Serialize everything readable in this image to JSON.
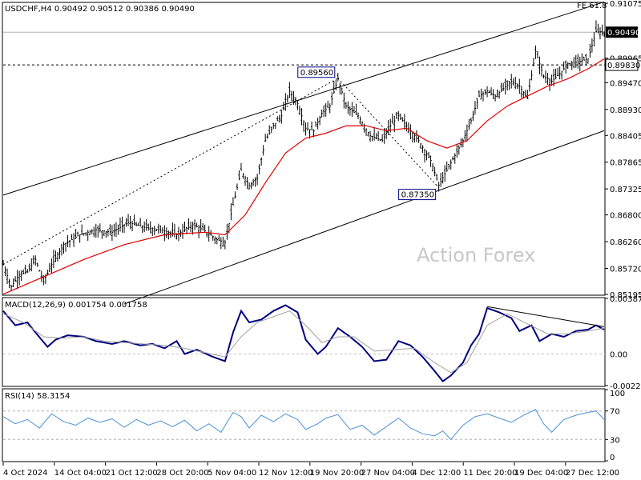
{
  "chart_data": [
    {
      "type": "candlestick",
      "title": "USDCHF,H4  0.90492 0.90512 0.90386 0.90490",
      "watermark": "Action Forex",
      "ylim": [
        0.85195,
        0.91075
      ],
      "y_ticks": [
        "0.91075",
        "0.90490",
        "0.89965",
        "0.89830",
        "0.89470",
        "0.88930",
        "0.88405",
        "0.87865",
        "0.87325",
        "0.86800",
        "0.86260",
        "0.85720",
        "0.85195"
      ],
      "price_tag": {
        "value": 0.9049,
        "label": "0.90490",
        "color": "#000000"
      },
      "hline": {
        "value": 0.8983,
        "label": "0.89830"
      },
      "fe_label": "FE 61.8",
      "x_labels": [
        "4 Oct 2024",
        "14 Oct 04:00",
        "21 Oct 12:00",
        "28 Oct 20:00",
        "5 Nov 04:00",
        "12 Nov 12:00",
        "19 Nov 20:00",
        "27 Nov 04:00",
        "4 Dec 12:00",
        "11 Dec 20:00",
        "19 Dec 04:00",
        "27 Dec 12:00"
      ],
      "annotations": [
        {
          "text": "0.89560",
          "value": 0.8956
        },
        {
          "text": "0.87350",
          "value": 0.8735
        }
      ],
      "price_path": [
        [
          0,
          0.858
        ],
        [
          4,
          0.8535
        ],
        [
          8,
          0.856
        ],
        [
          12,
          0.8565
        ],
        [
          16,
          0.859
        ],
        [
          20,
          0.8545
        ],
        [
          24,
          0.858
        ],
        [
          30,
          0.862
        ],
        [
          38,
          0.864
        ],
        [
          46,
          0.865
        ],
        [
          54,
          0.8645
        ],
        [
          62,
          0.8665
        ],
        [
          70,
          0.8655
        ],
        [
          78,
          0.865
        ],
        [
          86,
          0.864
        ],
        [
          94,
          0.866
        ],
        [
          100,
          0.8648
        ],
        [
          106,
          0.863
        ],
        [
          110,
          0.8625
        ],
        [
          114,
          0.87
        ],
        [
          118,
          0.877
        ],
        [
          122,
          0.874
        ],
        [
          126,
          0.8755
        ],
        [
          130,
          0.883
        ],
        [
          134,
          0.886
        ],
        [
          138,
          0.888
        ],
        [
          142,
          0.893
        ],
        [
          146,
          0.8905
        ],
        [
          150,
          0.8855
        ],
        [
          154,
          0.885
        ],
        [
          158,
          0.8885
        ],
        [
          162,
          0.89
        ],
        [
          166,
          0.8956
        ],
        [
          170,
          0.89
        ],
        [
          176,
          0.888
        ],
        [
          182,
          0.884
        ],
        [
          188,
          0.883
        ],
        [
          192,
          0.886
        ],
        [
          196,
          0.888
        ],
        [
          200,
          0.886
        ],
        [
          206,
          0.883
        ],
        [
          212,
          0.879
        ],
        [
          216,
          0.874
        ],
        [
          220,
          0.877
        ],
        [
          224,
          0.88
        ],
        [
          228,
          0.883
        ],
        [
          232,
          0.887
        ],
        [
          236,
          0.892
        ],
        [
          240,
          0.893
        ],
        [
          244,
          0.892
        ],
        [
          248,
          0.8935
        ],
        [
          252,
          0.895
        ],
        [
          256,
          0.894
        ],
        [
          260,
          0.8915
        ],
        [
          264,
          0.901
        ],
        [
          268,
          0.896
        ],
        [
          272,
          0.895
        ],
        [
          276,
          0.8965
        ],
        [
          280,
          0.8985
        ],
        [
          286,
          0.899
        ],
        [
          290,
          0.8995
        ],
        [
          294,
          0.905
        ],
        [
          298,
          0.9049
        ]
      ],
      "ma_path": [
        [
          0,
          0.852
        ],
        [
          20,
          0.8555
        ],
        [
          40,
          0.859
        ],
        [
          60,
          0.862
        ],
        [
          80,
          0.864
        ],
        [
          100,
          0.8645
        ],
        [
          110,
          0.864
        ],
        [
          120,
          0.868
        ],
        [
          130,
          0.8745
        ],
        [
          140,
          0.8805
        ],
        [
          150,
          0.8835
        ],
        [
          160,
          0.8845
        ],
        [
          170,
          0.886
        ],
        [
          180,
          0.886
        ],
        [
          190,
          0.885
        ],
        [
          200,
          0.8855
        ],
        [
          210,
          0.883
        ],
        [
          220,
          0.8815
        ],
        [
          230,
          0.883
        ],
        [
          240,
          0.887
        ],
        [
          250,
          0.89
        ],
        [
          260,
          0.892
        ],
        [
          270,
          0.894
        ],
        [
          280,
          0.8955
        ],
        [
          290,
          0.8975
        ],
        [
          298,
          0.8995
        ]
      ],
      "channel_upper": [
        [
          0,
          0.872
        ],
        [
          298,
          0.911
        ]
      ],
      "channel_lower": [
        [
          60,
          0.85
        ],
        [
          298,
          0.885
        ]
      ],
      "dashed_leg1": [
        [
          0,
          0.858
        ],
        [
          166,
          0.8956
        ]
      ],
      "dashed_leg2": [
        [
          166,
          0.8956
        ],
        [
          216,
          0.8735
        ]
      ],
      "colors": {
        "up": "#000000",
        "ma": "#e00000",
        "grid": "#c0c0c0"
      }
    },
    {
      "type": "line",
      "title": "MACD(12,26,9) 0.001754 0.001758",
      "ylim": [
        -0.002201,
        0.003873
      ],
      "y_ticks": [
        "0.003873",
        "0.00",
        "-0.002201"
      ],
      "zero_label": "0.00",
      "series": [
        {
          "name": "MACD",
          "color": "#000080",
          "values": [
            [
              0,
              0.003
            ],
            [
              6,
              0.002
            ],
            [
              12,
              0.0022
            ],
            [
              16,
              0.0015
            ],
            [
              22,
              0.0005
            ],
            [
              26,
              0.001
            ],
            [
              32,
              0.0013
            ],
            [
              40,
              0.0012
            ],
            [
              46,
              0.0009
            ],
            [
              54,
              0.0007
            ],
            [
              60,
              0.0009
            ],
            [
              68,
              0.0006
            ],
            [
              74,
              0.0007
            ],
            [
              80,
              0.0004
            ],
            [
              86,
              0.0009
            ],
            [
              90,
              0.0
            ],
            [
              96,
              0.0003
            ],
            [
              104,
              -0.0002
            ],
            [
              110,
              -0.0005
            ],
            [
              114,
              0.0015
            ],
            [
              118,
              0.003
            ],
            [
              122,
              0.0022
            ],
            [
              128,
              0.0024
            ],
            [
              134,
              0.003
            ],
            [
              140,
              0.0034
            ],
            [
              146,
              0.0029
            ],
            [
              150,
              0.001
            ],
            [
              156,
              0.0
            ],
            [
              160,
              0.0005
            ],
            [
              166,
              0.0018
            ],
            [
              172,
              0.0012
            ],
            [
              178,
              0.0005
            ],
            [
              184,
              -0.0005
            ],
            [
              190,
              -0.0004
            ],
            [
              196,
              0.0009
            ],
            [
              202,
              0.0006
            ],
            [
              208,
              -0.0002
            ],
            [
              214,
              -0.0012
            ],
            [
              218,
              -0.0019
            ],
            [
              222,
              -0.0015
            ],
            [
              228,
              -0.0006
            ],
            [
              232,
              0.0006
            ],
            [
              236,
              0.0014
            ],
            [
              240,
              0.0032
            ],
            [
              246,
              0.0029
            ],
            [
              252,
              0.0025
            ],
            [
              256,
              0.0016
            ],
            [
              262,
              0.002
            ],
            [
              266,
              0.0009
            ],
            [
              272,
              0.0014
            ],
            [
              278,
              0.0012
            ],
            [
              284,
              0.0016
            ],
            [
              290,
              0.0017
            ],
            [
              294,
              0.002
            ],
            [
              298,
              0.0017
            ]
          ]
        },
        {
          "name": "Signal",
          "color": "#a0a0a0",
          "values": [
            [
              0,
              0.0028
            ],
            [
              10,
              0.0022
            ],
            [
              20,
              0.0012
            ],
            [
              30,
              0.0011
            ],
            [
              40,
              0.0012
            ],
            [
              50,
              0.0009
            ],
            [
              60,
              0.0008
            ],
            [
              70,
              0.0007
            ],
            [
              80,
              0.0006
            ],
            [
              90,
              0.0004
            ],
            [
              100,
              0.0001
            ],
            [
              110,
              -0.0002
            ],
            [
              118,
              0.0012
            ],
            [
              126,
              0.0022
            ],
            [
              134,
              0.0026
            ],
            [
              142,
              0.003
            ],
            [
              150,
              0.002
            ],
            [
              158,
              0.0008
            ],
            [
              166,
              0.0012
            ],
            [
              174,
              0.0012
            ],
            [
              184,
              0.0002
            ],
            [
              194,
              0.0003
            ],
            [
              204,
              0.0004
            ],
            [
              214,
              -0.0006
            ],
            [
              222,
              -0.0013
            ],
            [
              230,
              -0.0006
            ],
            [
              240,
              0.002
            ],
            [
              250,
              0.0028
            ],
            [
              260,
              0.0021
            ],
            [
              270,
              0.0014
            ],
            [
              280,
              0.0014
            ],
            [
              290,
              0.0016
            ],
            [
              298,
              0.0018
            ]
          ]
        }
      ],
      "trendline": [
        [
          240,
          0.0033
        ],
        [
          298,
          0.0019
        ]
      ]
    },
    {
      "type": "line",
      "title": "RSI(14) 58.3154",
      "ylim": [
        0,
        100
      ],
      "y_ticks": [
        "100",
        "70",
        "30",
        "0"
      ],
      "levels": [
        70,
        30
      ],
      "series": [
        {
          "name": "RSI",
          "color": "#4a90d9",
          "values": [
            [
              0,
              62
            ],
            [
              6,
              52
            ],
            [
              12,
              58
            ],
            [
              18,
              46
            ],
            [
              24,
              66
            ],
            [
              30,
              55
            ],
            [
              36,
              50
            ],
            [
              42,
              60
            ],
            [
              48,
              54
            ],
            [
              54,
              59
            ],
            [
              60,
              47
            ],
            [
              66,
              58
            ],
            [
              72,
              50
            ],
            [
              78,
              56
            ],
            [
              84,
              48
            ],
            [
              90,
              57
            ],
            [
              96,
              42
            ],
            [
              102,
              52
            ],
            [
              108,
              40
            ],
            [
              114,
              68
            ],
            [
              118,
              62
            ],
            [
              122,
              46
            ],
            [
              128,
              64
            ],
            [
              134,
              55
            ],
            [
              140,
              66
            ],
            [
              146,
              58
            ],
            [
              150,
              44
            ],
            [
              156,
              52
            ],
            [
              160,
              60
            ],
            [
              166,
              65
            ],
            [
              172,
              44
            ],
            [
              178,
              50
            ],
            [
              184,
              36
            ],
            [
              190,
              48
            ],
            [
              196,
              60
            ],
            [
              202,
              46
            ],
            [
              208,
              38
            ],
            [
              214,
              35
            ],
            [
              218,
              42
            ],
            [
              222,
              30
            ],
            [
              228,
              50
            ],
            [
              234,
              62
            ],
            [
              240,
              66
            ],
            [
              246,
              60
            ],
            [
              252,
              54
            ],
            [
              258,
              64
            ],
            [
              264,
              72
            ],
            [
              268,
              52
            ],
            [
              272,
              40
            ],
            [
              278,
              58
            ],
            [
              284,
              64
            ],
            [
              290,
              68
            ],
            [
              294,
              70
            ],
            [
              298,
              58
            ]
          ]
        }
      ]
    }
  ]
}
